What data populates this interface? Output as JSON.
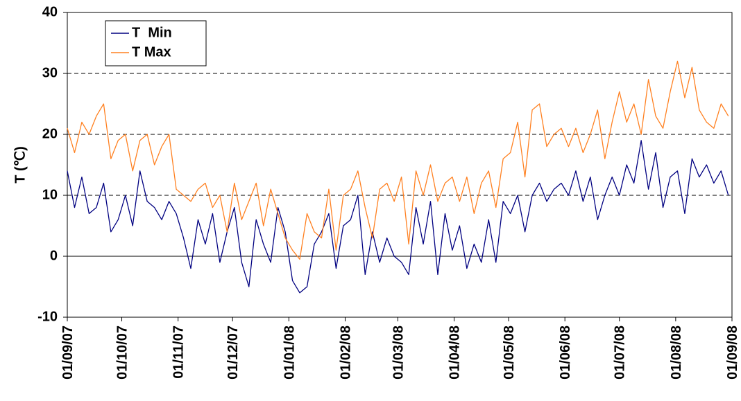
{
  "chart_data": {
    "type": "line",
    "y_label": "T (℃)",
    "x": [
      "01/09/07",
      "05/09/07",
      "09/09/07",
      "13/09/07",
      "17/09/07",
      "21/09/07",
      "25/09/07",
      "29/09/07",
      "03/10/07",
      "07/10/07",
      "11/10/07",
      "15/10/07",
      "19/10/07",
      "23/10/07",
      "27/10/07",
      "31/10/07",
      "04/11/07",
      "08/11/07",
      "12/11/07",
      "16/11/07",
      "20/11/07",
      "24/11/07",
      "28/11/07",
      "02/12/07",
      "06/12/07",
      "10/12/07",
      "14/12/07",
      "18/12/07",
      "22/12/07",
      "26/12/07",
      "30/12/07",
      "03/01/08",
      "07/01/08",
      "11/01/08",
      "15/01/08",
      "19/01/08",
      "23/01/08",
      "27/01/08",
      "31/01/08",
      "04/02/08",
      "08/02/08",
      "12/02/08",
      "16/02/08",
      "20/02/08",
      "24/02/08",
      "28/02/08",
      "03/03/08",
      "07/03/08",
      "11/03/08",
      "15/03/08",
      "19/03/08",
      "23/03/08",
      "27/03/08",
      "31/03/08",
      "04/04/08",
      "08/04/08",
      "12/04/08",
      "16/04/08",
      "20/04/08",
      "24/04/08",
      "28/04/08",
      "02/05/08",
      "06/05/08",
      "10/05/08",
      "14/05/08",
      "18/05/08",
      "22/05/08",
      "26/05/08",
      "30/05/08",
      "03/06/08",
      "07/06/08",
      "11/06/08",
      "15/06/08",
      "19/06/08",
      "23/06/08",
      "27/06/08",
      "01/07/08",
      "05/07/08",
      "09/07/08",
      "13/07/08",
      "17/07/08",
      "21/07/08",
      "25/07/08",
      "29/07/08",
      "02/08/08",
      "06/08/08",
      "10/08/08",
      "14/08/08",
      "18/08/08",
      "22/08/08",
      "26/08/08",
      "30/08/08"
    ],
    "series": [
      {
        "name": "T  Min",
        "color": "#000080",
        "values": [
          14,
          8,
          13,
          7,
          8,
          12,
          4,
          6,
          10,
          5,
          14,
          9,
          8,
          6,
          9,
          7,
          3,
          -2,
          6,
          2,
          7,
          -1,
          4,
          8,
          -1,
          -5,
          6,
          2,
          -1,
          8,
          4,
          -4,
          -6,
          -5,
          2,
          4,
          7,
          -2,
          5,
          6,
          10,
          -3,
          4,
          -1,
          3,
          0,
          -1,
          -3,
          8,
          2,
          9,
          -3,
          7,
          1,
          5,
          -2,
          2,
          -1,
          6,
          -1,
          9,
          7,
          10,
          4,
          10,
          12,
          9,
          11,
          12,
          10,
          14,
          9,
          13,
          6,
          10,
          13,
          10,
          15,
          12,
          19,
          11,
          17,
          8,
          13,
          14,
          7,
          16,
          13,
          15,
          12,
          14,
          10
        ]
      },
      {
        "name": "T Max",
        "color": "#ff8020",
        "values": [
          21,
          17,
          22,
          20,
          23,
          25,
          16,
          19,
          20,
          14,
          19,
          20,
          15,
          18,
          20,
          11,
          10,
          9,
          11,
          12,
          8,
          10,
          4,
          12,
          6,
          9,
          12,
          5,
          11,
          7,
          3,
          1,
          -0.5,
          7,
          4,
          3,
          11,
          1,
          10,
          11,
          14,
          8,
          3,
          11,
          12,
          9,
          13,
          2,
          14,
          10,
          15,
          9,
          12,
          13,
          9,
          13,
          7,
          12,
          14,
          8,
          16,
          17,
          22,
          13,
          24,
          25,
          18,
          20,
          21,
          18,
          21,
          17,
          20,
          24,
          16,
          22,
          27,
          22,
          25,
          20,
          29,
          23,
          21,
          27,
          32,
          26,
          31,
          24,
          22,
          21,
          25,
          23
        ]
      }
    ],
    "xlim": [
      "01/09/07",
      "01/09/08"
    ],
    "xticks": [
      "01/09/07",
      "01/10/07",
      "01/11/07",
      "01/12/07",
      "01/01/08",
      "01/02/08",
      "01/03/08",
      "01/04/08",
      "01/05/08",
      "01/06/08",
      "01/07/08",
      "01/08/08",
      "01/09/08"
    ],
    "ylim": [
      -10,
      40
    ],
    "yticks": [
      -10,
      0,
      10,
      20,
      30,
      40
    ],
    "grid": true,
    "legend": "top-left"
  }
}
